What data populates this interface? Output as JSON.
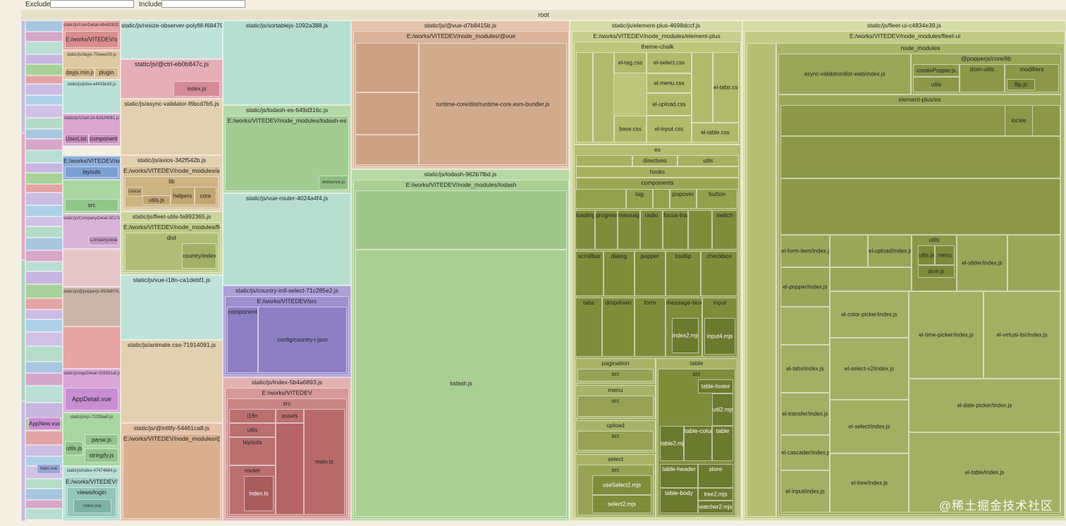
{
  "filters": {
    "exclude_label": "Exclude",
    "include_label": "Include",
    "exclude_value": "",
    "include_value": ""
  },
  "root_label": "root",
  "col1": [
    {
      "title": "static/js/UserDetail-48e82832.js",
      "path": "E:/works/VITEDEV/src",
      "leaves": []
    },
    {
      "title": "static/js/dayjs-70eeec00.js",
      "path": "",
      "leaves": [
        "dayjs.min.js",
        "plugin"
      ]
    },
    {
      "title": "static/js/pinia-a4419e16.js",
      "path": "",
      "leaves": []
    },
    {
      "title": "static/js/UserList-61624081.js",
      "path": "",
      "leaves": [
        "UserList.vue",
        "components"
      ]
    },
    {
      "title": "",
      "path": "E:/works/VITEDEV/src",
      "leaves": [
        "layouts"
      ]
    },
    {
      "title": "",
      "path": "",
      "leaves": [
        "src"
      ]
    },
    {
      "title": "static/js/CompanyDetail-5017efa.js",
      "path": "",
      "leaves": [
        "CompanyDetail.vue"
      ]
    },
    {
      "title": "static/js/@popperjs-992b6f76.js",
      "path": "",
      "leaves": []
    },
    {
      "title": "static/js/AppDetail-026591af.js",
      "path": "",
      "leaves": [
        "AppDetail.vue"
      ]
    },
    {
      "title": "static/js/qs-71f29ae0.js",
      "path": "",
      "leaves": [
        "parse.js",
        "utils.js",
        "stringify.js"
      ]
    },
    {
      "title": "static/js/index-47474664.js",
      "path": "E:/works/VITEDEV/src",
      "leaves": [
        "views/login",
        "index.vue"
      ]
    }
  ],
  "left_strip_labels": [
    "AppNew.vue",
    "Main.vue"
  ],
  "col2": [
    {
      "title": "static/js/resize-observer-polyfill-f68479a8.js"
    },
    {
      "title": "static/js/@ctrl-eb0b847c.js",
      "leaf": "index.js"
    },
    {
      "title": "static/js/async-validator-f6bcd7b5.js"
    },
    {
      "title": "static/js/axios-342f542b.js",
      "path": "E:/works/VITEDEV/node_modules/axios",
      "lib": "lib",
      "leaves": [
        "cancel",
        "helpers",
        "core",
        "utils.js"
      ]
    },
    {
      "title": "static/js/fleet-utils-fa992365.js",
      "path": "E:/works/VITEDEV/node_modules/fleet-utils",
      "lib": "dist",
      "leaves": [
        "country/index.js"
      ]
    },
    {
      "title": "static/js/vue-i18n-ca1debf1.js"
    },
    {
      "title": "static/js/animate.css-71914091.js"
    },
    {
      "title": "static/js/@intlify-54461ca8.js",
      "path": "E:/works/VITEDEV/node_modules/@intlify"
    }
  ],
  "col3": [
    {
      "title": "static/js/sortablejs-1092a388.js"
    },
    {
      "title": "static/js/lodash-es-649d316c.js",
      "path": "E:/works/VITEDEV/node_modules/lodash-es",
      "leaves": [
        "debounce.js"
      ]
    },
    {
      "title": "static/js/vue-router-4024a4f4.js"
    },
    {
      "title": "static/js/country-intl-select-71c285e2.js",
      "path": "E:/works/VITEDEV/src",
      "leaves": [
        "components",
        "config/country-r.json"
      ]
    },
    {
      "title": "static/js/index-5b4a6893.js",
      "path": "E:/works/VITEDEV",
      "src": "src",
      "leaves": [
        "i18n",
        "assets",
        "utils",
        "layouts",
        "router",
        "index.ts",
        "main.ts"
      ]
    }
  ],
  "col4": {
    "vue": {
      "title": "static/js/@vue-d7b8415b.js",
      "path": "E:/works/VITEDEV/node_modules/@vue",
      "leaf": "runtime-core/dist/runtime-core.esm-bundler.js"
    },
    "lodash": {
      "title": "static/js/lodash-962b7fbd.js",
      "path": "E:/works/VITEDEV/node_modules/lodash",
      "leaf": "lodash.js"
    }
  },
  "col5": {
    "title": "static/js/element-plus-4698dccf.js",
    "path": "E:/works/VITEDEV/node_modules/element-plus",
    "theme_chalk": "theme-chalk",
    "css": [
      "el-tag.css",
      "el-select.css",
      "el-menu.css",
      "el-tabs.css",
      "el-upload.css",
      "base.css",
      "el-input.css",
      "el-table.css"
    ],
    "es": "es",
    "es_leaves": [
      "directives",
      "utils"
    ],
    "hooks": "hooks",
    "components": "components",
    "comp_row1": [
      "tag",
      "popover",
      "button"
    ],
    "comp_row2": [
      "loading",
      "progress",
      "message",
      "radio",
      "focus-trap",
      "switch"
    ],
    "comp_row3": [
      "scrollbar",
      "dialog",
      "popper",
      "tooltip",
      "checkbox"
    ],
    "comp_row4": [
      "tabs",
      "dropdown",
      "form",
      "message-box",
      "input"
    ],
    "comp_row4_leaves": [
      "index2.mjs",
      "input4.mjs"
    ],
    "pagination": "pagination",
    "table": "table",
    "menu": "menu",
    "upload": "upload",
    "select": "select",
    "src": "src",
    "table_leaves": [
      "table-footer",
      "util2.mjs",
      "table-column",
      "table",
      "table2.mjs",
      "table-header",
      "store",
      "table-body",
      "tree2.mjs",
      "watcher2.mjs"
    ],
    "select_leaves": [
      "useSelect2.mjs",
      "select2.mjs"
    ]
  },
  "col6": {
    "title": "static/js/fleet-ui-c4834e39.js",
    "path": "E:/works/VITEDEV/node_modules/fleet-ui",
    "node_modules": "node_modules",
    "async_validator": "async-validator/dist-web/index.js",
    "popperjs": "@popperjs/core/lib",
    "popper_leaves": [
      "createPopper.js",
      "dom-utils",
      "modifiers",
      "utils",
      "flip.js"
    ],
    "element_plus_es": "element-plus/es",
    "locale": "locale",
    "utils": "utils",
    "utils_leaves": [
      "utils.js",
      "menu",
      "dom.js"
    ],
    "leaves": [
      "el-form-item/index.js",
      "el-upload/index.js",
      "el-slider/index.js",
      "el-popper/index.js",
      "el-color-picker/index.js",
      "el-tabs/index.js",
      "el-select-v2/index.js",
      "el-time-picker/index.js",
      "el-virtual-list/index.js",
      "el-date-picker/index.js",
      "el-transfer/index.js",
      "el-select/index.js",
      "el-cascader/index.js",
      "el-tree/index.js",
      "el-table/index.js",
      "el-input/index.js"
    ]
  },
  "watermark": "@稀土掘金技术社区",
  "colors": {
    "teal": "#b9ded3",
    "pink": "#e3a4a4",
    "tan": "#e0c8a6",
    "olive": "#c9d090",
    "green": "#a9d19a",
    "purple": "#a9a5d6",
    "blue": "#a9c6e0",
    "darkolive": "#8f9c4a"
  }
}
